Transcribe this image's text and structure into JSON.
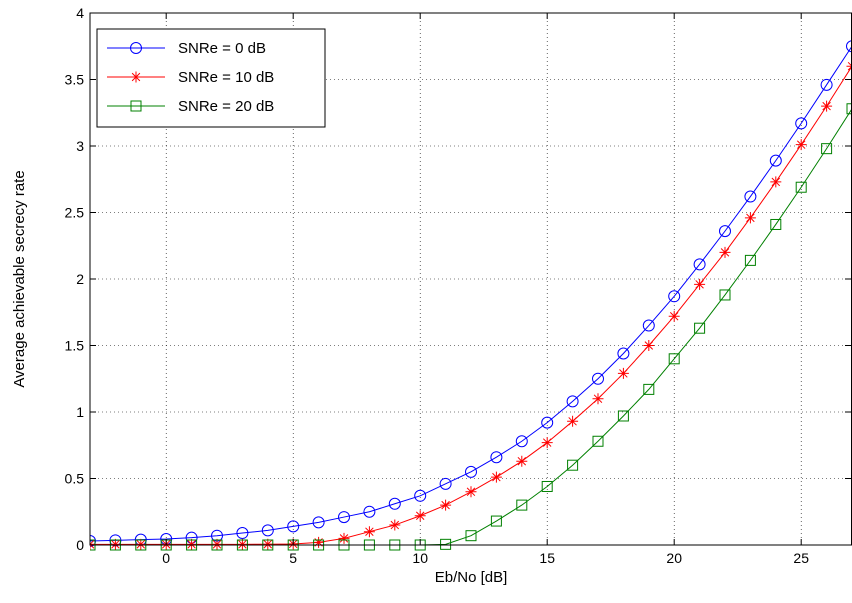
{
  "chart_data": {
    "type": "line",
    "xlabel": "Eb/No [dB]",
    "ylabel": "Average achievable secrecy rate",
    "xlim": [
      -3,
      27
    ],
    "ylim": [
      0,
      4
    ],
    "xticks": [
      0,
      5,
      10,
      15,
      20,
      25
    ],
    "yticks": [
      0,
      0.5,
      1,
      1.5,
      2,
      2.5,
      3,
      3.5,
      4
    ],
    "xtick_labels": [
      "0",
      "5",
      "10",
      "15",
      "20",
      "25"
    ],
    "ytick_labels": [
      "0",
      "0.5",
      "1",
      "1.5",
      "2",
      "2.5",
      "3",
      "3.5",
      "4"
    ],
    "grid": true,
    "legend_position": "top-left",
    "x": [
      -3,
      -2,
      -1,
      0,
      1,
      2,
      3,
      4,
      5,
      6,
      7,
      8,
      9,
      10,
      11,
      12,
      13,
      14,
      15,
      16,
      17,
      18,
      19,
      20,
      21,
      22,
      23,
      24,
      25,
      26,
      27
    ],
    "series": [
      {
        "name": "SNRe = 0 dB",
        "color": "#0000ff",
        "marker": "circle",
        "values": [
          0.03,
          0.035,
          0.04,
          0.045,
          0.055,
          0.07,
          0.09,
          0.11,
          0.14,
          0.17,
          0.21,
          0.25,
          0.31,
          0.37,
          0.46,
          0.55,
          0.66,
          0.78,
          0.92,
          1.08,
          1.25,
          1.44,
          1.65,
          1.87,
          2.11,
          2.36,
          2.62,
          2.89,
          3.17,
          3.46,
          3.75
        ]
      },
      {
        "name": "SNRe = 10 dB",
        "color": "#ff0000",
        "marker": "asterisk",
        "values": [
          0.005,
          0.005,
          0.005,
          0.005,
          0.005,
          0.005,
          0.005,
          0.006,
          0.008,
          0.02,
          0.05,
          0.1,
          0.15,
          0.22,
          0.3,
          0.4,
          0.51,
          0.63,
          0.77,
          0.93,
          1.1,
          1.29,
          1.5,
          1.72,
          1.96,
          2.2,
          2.46,
          2.73,
          3.01,
          3.3,
          3.6
        ]
      },
      {
        "name": "SNRe = 20 dB",
        "color": "#008000",
        "marker": "square",
        "values": [
          0,
          0,
          0,
          0,
          0,
          0,
          0,
          0,
          0,
          0,
          0,
          0,
          0,
          0,
          0.005,
          0.07,
          0.18,
          0.3,
          0.44,
          0.6,
          0.78,
          0.97,
          1.17,
          1.4,
          1.63,
          1.88,
          2.14,
          2.41,
          2.69,
          2.98,
          3.28
        ]
      }
    ]
  }
}
